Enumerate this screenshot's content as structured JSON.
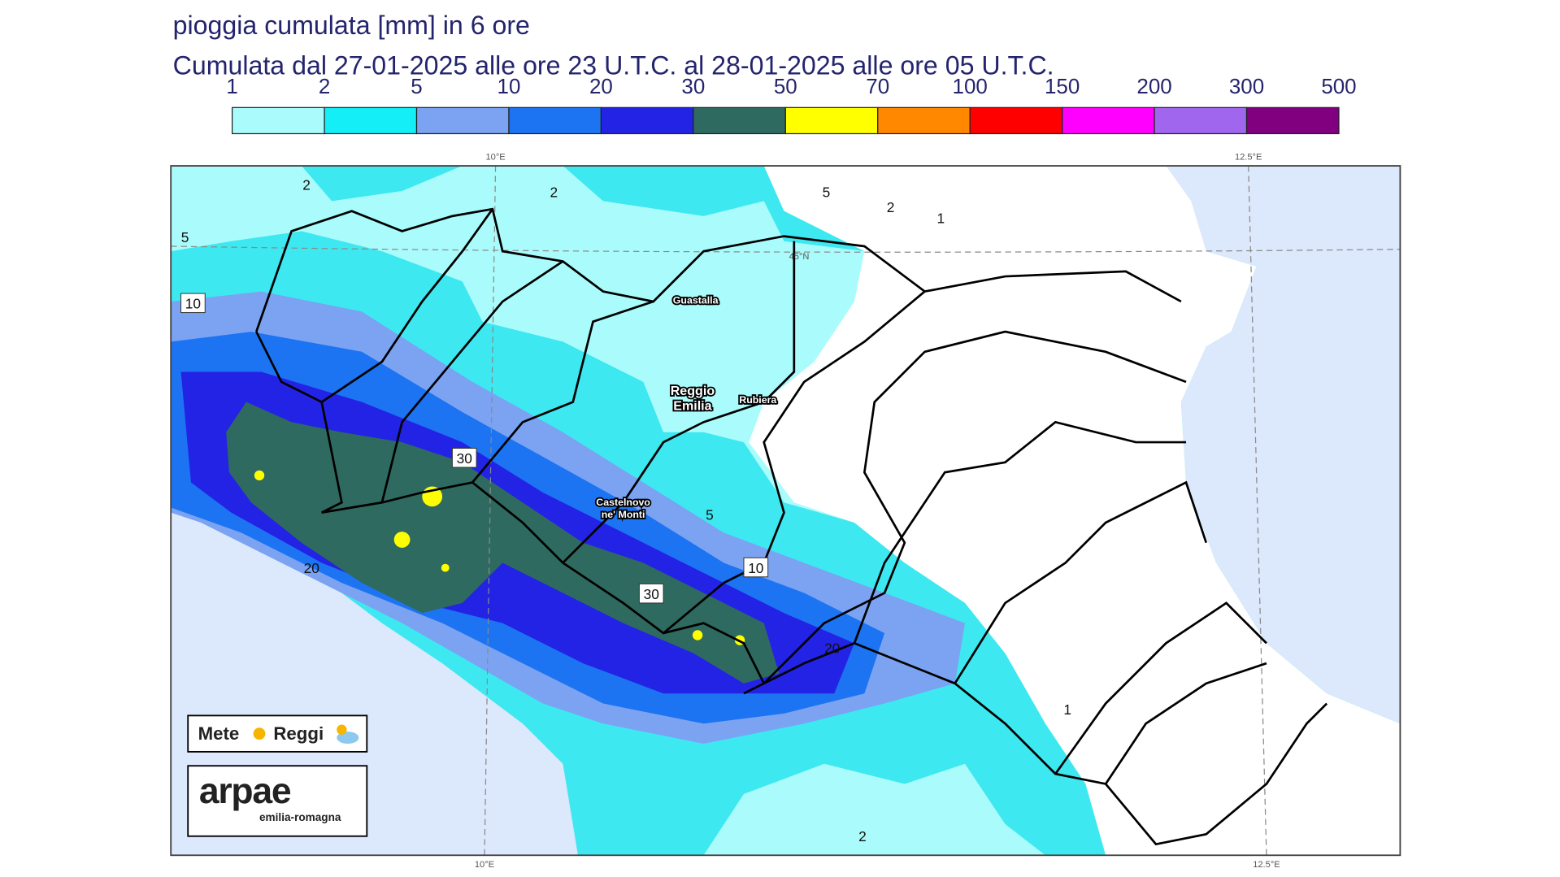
{
  "header": {
    "title": "pioggia cumulata [mm] in 6 ore",
    "subtitle": "Cumulata dal 27-01-2025 alle ore 23 U.T.C. al 28-01-2025 alle ore 05 U.T.C."
  },
  "legend": {
    "thresholds": [
      1,
      2,
      5,
      10,
      20,
      30,
      50,
      70,
      100,
      150,
      200,
      300,
      500
    ],
    "colors": [
      "#aafcfc",
      "#14eef6",
      "#7ba3f2",
      "#1c74f2",
      "#2323e6",
      "#2f6a60",
      "#ffff00",
      "#ff8800",
      "#ff0000",
      "#ff00ff",
      "#a066ee",
      "#800080"
    ]
  },
  "map": {
    "grid_labels": [
      "10°E",
      "12.5°E",
      "45°N",
      "10°E",
      "12.5°E"
    ],
    "places": [
      [
        "Guastalla"
      ],
      [
        "Reggio",
        "Emilia"
      ],
      [
        "Rubiera"
      ],
      [
        "Castelnovo",
        "ne' Monti"
      ]
    ],
    "contour_labels": [
      2,
      2,
      5,
      2,
      1,
      5,
      10,
      30,
      20,
      5,
      10,
      30,
      20,
      1,
      2
    ]
  },
  "logos": {
    "meteo": [
      "Mete",
      "Reggi"
    ],
    "arpae": "arpae",
    "region": "emilia-romagna"
  }
}
